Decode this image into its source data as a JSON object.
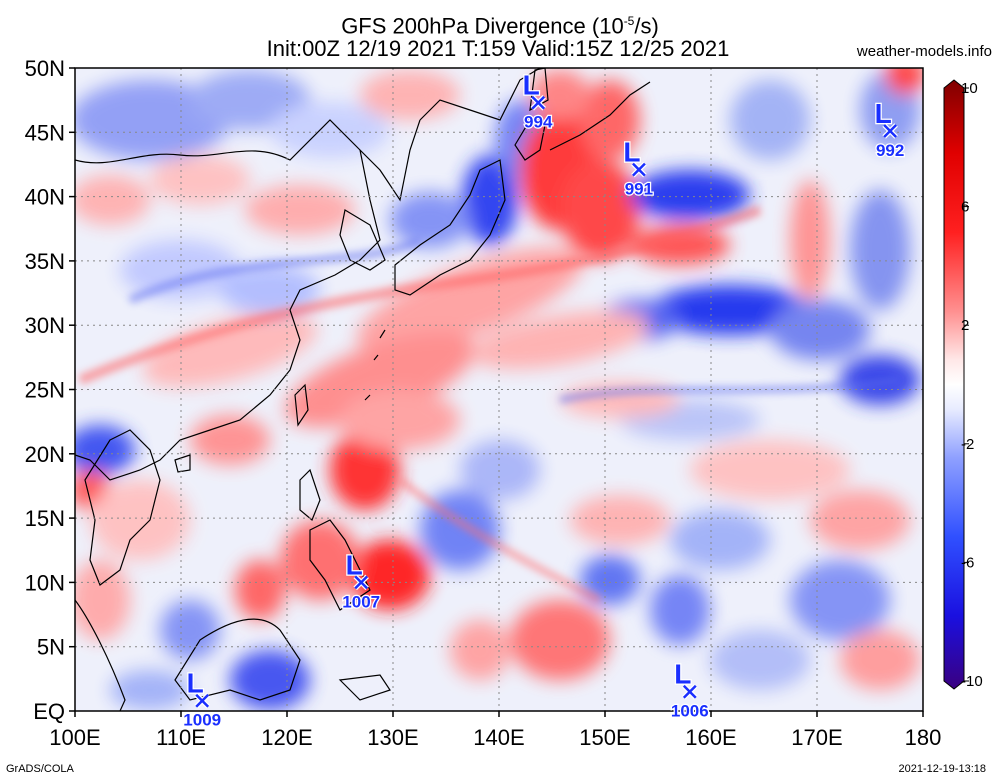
{
  "title": {
    "line1_prefix": "GFS 200hPa Divergence (10",
    "line1_exp": "-5",
    "line1_suffix": "/s)",
    "line2": "Init:00Z 12/19 2021 T:159 Valid:15Z 12/25 2021"
  },
  "site": "weather-models.info",
  "footer": {
    "left": "GrADS/COLA",
    "right": "2021-12-19-13:18"
  },
  "axes": {
    "lat_labels": [
      "50N",
      "45N",
      "40N",
      "35N",
      "30N",
      "25N",
      "20N",
      "15N",
      "10N",
      "5N",
      "EQ"
    ],
    "lon_labels": [
      "100E",
      "110E",
      "120E",
      "130E",
      "140E",
      "150E",
      "160E",
      "170E",
      "180"
    ],
    "lat_range": [
      0,
      50
    ],
    "lon_range": [
      100,
      180
    ],
    "grid": true
  },
  "colorbar": {
    "ticks": [
      "10",
      "6",
      "2",
      "-2",
      "-6",
      "-10"
    ],
    "range": [
      -10,
      10
    ],
    "colors": [
      "#3a0080",
      "#0000e0",
      "#3050ff",
      "#8fa0ff",
      "#ffffff",
      "#ff9090",
      "#ff2020",
      "#e00000",
      "#800000"
    ]
  },
  "lows": [
    {
      "pressure": "994",
      "lon": 143.7,
      "lat": 47.3
    },
    {
      "pressure": "991",
      "lon": 153.2,
      "lat": 42.1
    },
    {
      "pressure": "992",
      "lon": 176.9,
      "lat": 45.1
    },
    {
      "pressure": "1007",
      "lon": 127.0,
      "lat": 10.0
    },
    {
      "pressure": "1009",
      "lon": 112.0,
      "lat": 0.8
    },
    {
      "pressure": "1006",
      "lon": 158.0,
      "lat": 1.5
    }
  ],
  "low_symbol": "L",
  "colors": {
    "low_blue": "#1a2fff",
    "grid": "#888888",
    "coast": "#000000"
  }
}
